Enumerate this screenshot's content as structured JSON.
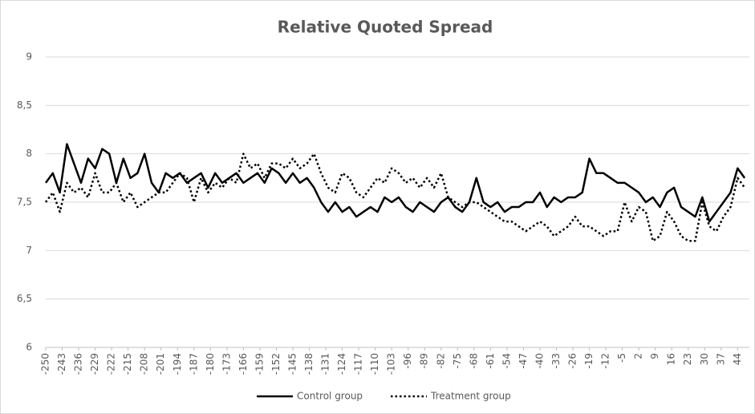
{
  "chart_data": {
    "type": "line",
    "title": "Relative Quoted Spread",
    "x": [
      -250,
      -247,
      -244,
      -241,
      -238,
      -235,
      -232,
      -229,
      -226,
      -223,
      -220,
      -217,
      -214,
      -211,
      -208,
      -205,
      -202,
      -199,
      -196,
      -193,
      -190,
      -187,
      -184,
      -181,
      -178,
      -175,
      -172,
      -169,
      -166,
      -163,
      -160,
      -157,
      -154,
      -151,
      -148,
      -145,
      -142,
      -139,
      -136,
      -133,
      -130,
      -127,
      -124,
      -121,
      -118,
      -115,
      -112,
      -109,
      -106,
      -103,
      -100,
      -97,
      -94,
      -91,
      -88,
      -85,
      -82,
      -79,
      -76,
      -73,
      -70,
      -67,
      -64,
      -61,
      -58,
      -55,
      -52,
      -49,
      -46,
      -43,
      -40,
      -37,
      -34,
      -31,
      -28,
      -25,
      -22,
      -19,
      -16,
      -13,
      -10,
      -7,
      -4,
      -1,
      2,
      5,
      8,
      11,
      14,
      17,
      20,
      23,
      26,
      29,
      32,
      35,
      38,
      41,
      44,
      47
    ],
    "series": [
      {
        "name": "Control group",
        "color": "#000000",
        "style": "solid",
        "values": [
          7.7,
          7.8,
          7.6,
          8.1,
          7.9,
          7.7,
          7.95,
          7.85,
          8.05,
          8.0,
          7.7,
          7.95,
          7.75,
          7.8,
          8.0,
          7.7,
          7.6,
          7.8,
          7.75,
          7.8,
          7.7,
          7.75,
          7.8,
          7.65,
          7.8,
          7.7,
          7.75,
          7.8,
          7.7,
          7.75,
          7.8,
          7.7,
          7.85,
          7.8,
          7.7,
          7.8,
          7.7,
          7.75,
          7.65,
          7.5,
          7.4,
          7.5,
          7.4,
          7.45,
          7.35,
          7.4,
          7.45,
          7.4,
          7.55,
          7.5,
          7.55,
          7.45,
          7.4,
          7.5,
          7.45,
          7.4,
          7.5,
          7.55,
          7.45,
          7.4,
          7.5,
          7.75,
          7.5,
          7.45,
          7.5,
          7.4,
          7.45,
          7.45,
          7.5,
          7.5,
          7.6,
          7.45,
          7.55,
          7.5,
          7.55,
          7.55,
          7.6,
          7.95,
          7.8,
          7.8,
          7.75,
          7.7,
          7.7,
          7.65,
          7.6,
          7.5,
          7.55,
          7.45,
          7.6,
          7.65,
          7.45,
          7.4,
          7.35,
          7.55,
          7.3,
          7.4,
          7.5,
          7.6,
          7.85,
          7.75
        ]
      },
      {
        "name": "Treatment group",
        "color": "#000000",
        "style": "dotted",
        "values": [
          7.5,
          7.6,
          7.4,
          7.7,
          7.6,
          7.65,
          7.55,
          7.8,
          7.6,
          7.6,
          7.7,
          7.5,
          7.6,
          7.45,
          7.5,
          7.55,
          7.6,
          7.6,
          7.7,
          7.8,
          7.75,
          7.5,
          7.75,
          7.6,
          7.7,
          7.65,
          7.75,
          7.7,
          8.0,
          7.85,
          7.9,
          7.75,
          7.9,
          7.9,
          7.85,
          7.95,
          7.85,
          7.9,
          8.0,
          7.8,
          7.65,
          7.6,
          7.8,
          7.75,
          7.6,
          7.55,
          7.65,
          7.75,
          7.7,
          7.85,
          7.8,
          7.7,
          7.75,
          7.65,
          7.75,
          7.65,
          7.8,
          7.55,
          7.5,
          7.45,
          7.5,
          7.5,
          7.45,
          7.4,
          7.35,
          7.3,
          7.3,
          7.25,
          7.2,
          7.25,
          7.3,
          7.25,
          7.15,
          7.2,
          7.25,
          7.35,
          7.25,
          7.25,
          7.2,
          7.15,
          7.2,
          7.2,
          7.5,
          7.3,
          7.45,
          7.4,
          7.1,
          7.15,
          7.4,
          7.3,
          7.15,
          7.1,
          7.1,
          7.5,
          7.25,
          7.2,
          7.35,
          7.45,
          7.75,
          7.65
        ]
      }
    ],
    "xlim": [
      -250,
      49
    ],
    "xticks": [
      -250,
      -243,
      -236,
      -229,
      -222,
      -215,
      -208,
      -201,
      -194,
      -187,
      -180,
      -173,
      -166,
      -159,
      -152,
      -145,
      -138,
      -131,
      -124,
      -117,
      -110,
      -103,
      -96,
      -89,
      -82,
      -75,
      -68,
      -61,
      -54,
      -47,
      -40,
      -33,
      -26,
      -19,
      -12,
      -5,
      2,
      9,
      16,
      23,
      30,
      37,
      44
    ],
    "ylim": [
      6,
      9
    ],
    "yticks": [
      6,
      {
        "value": 6.5,
        "label": "6,5"
      },
      7,
      {
        "value": 7.5,
        "label": "7,5"
      },
      8,
      {
        "value": 8.5,
        "label": "8,5"
      },
      9
    ],
    "grid": true,
    "legend": "bottom"
  }
}
